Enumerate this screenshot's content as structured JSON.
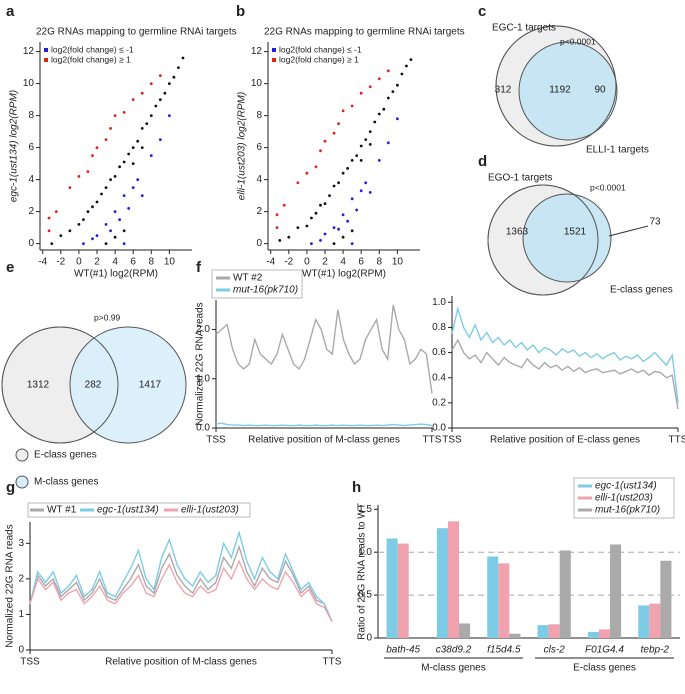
{
  "chart_data": [
    {
      "type": "scatter",
      "panel": "a",
      "title": "22G RNAs mapping to germline RNAi targets",
      "xlabel": "WT(#1) log2(RPM)",
      "ylabel": "egc-1(ust134) log2(RPM)",
      "xlim": [
        -4.3,
        12.5
      ],
      "ylim": [
        -0.4,
        12.6
      ],
      "xticks": [
        -4,
        -2,
        0,
        2,
        4,
        6,
        8,
        10
      ],
      "yticks": [
        0,
        2,
        4,
        6,
        8,
        10,
        12
      ],
      "series": [
        {
          "color": "#111111",
          "x": [
            -3,
            -2,
            -1,
            0,
            0.5,
            1,
            1.5,
            2,
            2.5,
            3,
            3.5,
            4,
            4.5,
            5,
            5.5,
            6,
            6.5,
            7,
            7.5,
            8,
            8.5,
            9,
            9.5,
            10,
            10.5,
            11,
            11.5,
            3,
            4,
            5,
            6,
            7
          ],
          "values": [
            0,
            0.5,
            0.8,
            1.2,
            1.5,
            2,
            2.3,
            2.6,
            3.1,
            3.5,
            4,
            4.2,
            4.8,
            5.1,
            5.6,
            6,
            6.4,
            7.2,
            7.5,
            8,
            8.6,
            9,
            9.4,
            10,
            10.4,
            11,
            11.6,
            0,
            0.4,
            0.8,
            5,
            6
          ]
        },
        {
          "name": "log2(fold change) ≥ 1",
          "color": "#e0201b",
          "x": [
            -3.3,
            -3.3,
            -2.5,
            -1,
            0,
            1,
            1.5,
            2,
            3,
            3.5,
            4,
            5,
            6,
            7,
            8,
            9
          ],
          "values": [
            0.8,
            1.6,
            2,
            3.5,
            4.2,
            4.5,
            5.5,
            6,
            6.5,
            7.2,
            8,
            8.2,
            9,
            9.4,
            10,
            10.5
          ]
        },
        {
          "name": "log2(fold change) ≤ -1",
          "color": "#1f1fd6",
          "x": [
            0.5,
            1.5,
            2,
            3,
            3.5,
            4,
            4.5,
            5,
            5.5,
            6,
            6.5,
            7,
            8,
            9,
            10,
            5
          ],
          "values": [
            0,
            0.3,
            0.5,
            1.2,
            0.8,
            2,
            1.5,
            3,
            2.2,
            3.5,
            4,
            3,
            5.5,
            6.5,
            8,
            0
          ]
        }
      ]
    },
    {
      "type": "scatter",
      "panel": "b",
      "title": "22G RNAs mapping to germline RNAi targets",
      "xlabel": "WT(#1) log2(RPM)",
      "ylabel": "elli-1(ust203) log2(RPM)",
      "xlim": [
        -4.3,
        12.5
      ],
      "ylim": [
        -0.4,
        12.6
      ],
      "xticks": [
        -4,
        -2,
        0,
        2,
        4,
        6,
        8,
        10
      ],
      "yticks": [
        0,
        2,
        4,
        6,
        8,
        10,
        12
      ],
      "series": [
        {
          "color": "#111111",
          "x": [
            -3,
            -2,
            -1,
            0,
            0.5,
            1,
            1.5,
            2,
            2.5,
            3,
            3.5,
            4,
            4.5,
            5,
            5.5,
            6,
            6.5,
            7,
            7.5,
            8,
            8.5,
            9,
            9.5,
            10,
            10.5,
            11,
            11.5,
            3,
            4,
            5,
            6,
            7
          ],
          "values": [
            0.2,
            0.4,
            1,
            1.1,
            1.6,
            1.9,
            2.4,
            2.5,
            3,
            3.6,
            3.8,
            4.4,
            4.7,
            5.2,
            5.5,
            6.1,
            6.5,
            7,
            7.6,
            8.1,
            8.4,
            9.1,
            9.5,
            9.9,
            10.6,
            11.1,
            11.5,
            0,
            0.4,
            0.8,
            5.2,
            6.2
          ]
        },
        {
          "name": "log2(fold change) ≥ 1",
          "color": "#e0201b",
          "x": [
            -3.3,
            -3.3,
            -2.5,
            -1,
            0,
            1,
            1.5,
            2,
            3,
            3.5,
            4,
            5,
            6,
            7,
            8,
            9
          ],
          "values": [
            1,
            1.8,
            2.4,
            3.8,
            4.4,
            4.8,
            5.8,
            6.4,
            6.9,
            7.5,
            8.3,
            8.6,
            9.4,
            9.8,
            10.3,
            10.8
          ]
        },
        {
          "name": "log2(fold change) ≤ -1",
          "color": "#1f1fd6",
          "x": [
            0.5,
            1.5,
            2,
            3,
            3.5,
            4,
            4.5,
            5,
            5.5,
            6,
            6.5,
            7,
            8,
            9,
            10,
            5
          ],
          "values": [
            0,
            0.2,
            0.6,
            1,
            0.9,
            1.8,
            1.4,
            2.8,
            2.1,
            3.3,
            3.8,
            3.2,
            5.2,
            6.3,
            7.8,
            0
          ]
        }
      ]
    },
    {
      "type": "venn",
      "panel": "c",
      "p_value": "p<0.0001",
      "sets": [
        {
          "name": "EGC-1 targets",
          "color": "#eeeeee"
        },
        {
          "name": "ELLI-1 targets",
          "color": "#bfe3f2"
        }
      ],
      "values": [
        312,
        1192,
        90
      ]
    },
    {
      "type": "venn",
      "panel": "d",
      "p_value": "p<0.0001",
      "sets": [
        {
          "name": "EGO-1 targets",
          "color": "#eeeeee"
        },
        {
          "name": "E-class genes",
          "color": "#bfe3f2"
        }
      ],
      "values": [
        1363,
        1521,
        73
      ]
    },
    {
      "type": "venn",
      "panel": "e",
      "p_value": "p>0.99",
      "sets": [
        {
          "name": "E-class genes",
          "color": "#eeeeee"
        },
        {
          "name": "M-class genes",
          "color": "#d6eefa"
        }
      ],
      "values": [
        1312,
        282,
        1417
      ]
    },
    {
      "type": "line",
      "panel": "f",
      "ylabel": "Normalized 22G RNA reads",
      "xlabel": "Relative position of M-class genes",
      "xlim": [
        0,
        39
      ],
      "xticks": [
        {
          "value": 0,
          "label": "TSS"
        },
        {
          "value": 39,
          "label": "TTS"
        }
      ],
      "ylim": [
        0,
        2.6
      ],
      "yticks": [
        {
          "value": 0,
          "label": "0.0"
        },
        {
          "value": 1,
          "label": "1.0"
        },
        {
          "value": 2,
          "label": "2.0"
        }
      ],
      "series": [
        {
          "name": "WT #2",
          "color": "#aaaaaa",
          "values": [
            1.9,
            2.0,
            2.1,
            1.6,
            1.3,
            1.2,
            1.3,
            1.8,
            1.5,
            1.4,
            1.3,
            1.5,
            1.9,
            1.6,
            1.3,
            1.2,
            1.4,
            1.8,
            2.2,
            2.0,
            1.6,
            1.5,
            2.4,
            1.8,
            1.5,
            1.3,
            1.4,
            1.8,
            2.0,
            2.2,
            1.6,
            1.4,
            2.5,
            2.0,
            1.8,
            1.3,
            1.4,
            1.6,
            1.5,
            0.7
          ]
        },
        {
          "name": "mut-16(pk710)",
          "color": "#7ecbe6",
          "values": [
            0.08,
            0.1,
            0.07,
            0.06,
            0.06,
            0.05,
            0.06,
            0.05,
            0.05,
            0.06,
            0.05,
            0.05,
            0.06,
            0.05,
            0.05,
            0.06,
            0.05,
            0.05,
            0.06,
            0.05,
            0.05,
            0.06,
            0.05,
            0.06,
            0.05,
            0.05,
            0.06,
            0.05,
            0.05,
            0.06,
            0.05,
            0.06,
            0.07,
            0.06,
            0.05,
            0.06,
            0.07,
            0.08,
            0.07,
            0.05
          ]
        }
      ]
    },
    {
      "type": "line",
      "xlabel": "Relative position of E-class genes",
      "xlim": [
        0,
        39
      ],
      "xticks": [
        {
          "value": 0,
          "label": "TSS"
        },
        {
          "value": 39,
          "label": "TTS"
        }
      ],
      "ylim": [
        0,
        1.05
      ],
      "yticks": [
        {
          "value": 0,
          "label": "0.0"
        },
        0.2,
        0.4,
        0.6,
        0.8,
        {
          "value": 1,
          "label": "1.0"
        }
      ],
      "series": [
        {
          "color": "#aaaaaa",
          "values": [
            0.62,
            0.7,
            0.6,
            0.55,
            0.58,
            0.52,
            0.6,
            0.55,
            0.5,
            0.56,
            0.52,
            0.5,
            0.48,
            0.55,
            0.5,
            0.47,
            0.52,
            0.48,
            0.5,
            0.46,
            0.49,
            0.45,
            0.48,
            0.44,
            0.46,
            0.47,
            0.44,
            0.45,
            0.46,
            0.43,
            0.45,
            0.47,
            0.44,
            0.46,
            0.42,
            0.45,
            0.44,
            0.4,
            0.42,
            0.15
          ]
        },
        {
          "color": "#7ecbe6",
          "values": [
            0.75,
            0.95,
            0.8,
            0.72,
            0.82,
            0.7,
            0.76,
            0.68,
            0.72,
            0.66,
            0.7,
            0.64,
            0.68,
            0.62,
            0.66,
            0.6,
            0.64,
            0.62,
            0.58,
            0.63,
            0.6,
            0.62,
            0.57,
            0.6,
            0.56,
            0.59,
            0.55,
            0.58,
            0.6,
            0.54,
            0.57,
            0.55,
            0.58,
            0.53,
            0.56,
            0.6,
            0.55,
            0.5,
            0.58,
            0.2
          ]
        }
      ]
    },
    {
      "type": "line",
      "panel": "g",
      "ylabel": "Normalized 22G RNA reads",
      "xlabel": "Relative position of M-class genes",
      "xlim": [
        0,
        39
      ],
      "xticks": [
        {
          "value": 0,
          "label": "TSS"
        },
        {
          "value": 39,
          "label": "TTS"
        }
      ],
      "ylim": [
        0,
        3.6
      ],
      "yticks": [
        0,
        1,
        2,
        3
      ],
      "series": [
        {
          "name": "WT #1",
          "color": "#aaaaaa",
          "values": [
            1.3,
            2.1,
            1.8,
            2.0,
            1.5,
            1.7,
            1.9,
            1.4,
            1.6,
            2.0,
            1.5,
            1.4,
            1.7,
            2.0,
            2.4,
            1.8,
            1.6,
            2.3,
            2.7,
            2.1,
            1.8,
            1.6,
            2.0,
            1.7,
            1.9,
            2.6,
            2.3,
            2.9,
            2.2,
            1.8,
            2.3,
            2.0,
            1.9,
            2.5,
            2.1,
            1.6,
            1.8,
            1.4,
            1.3,
            0.8
          ]
        },
        {
          "name": "egc-1(ust134)",
          "color": "#7ecbe6",
          "values": [
            1.3,
            2.2,
            1.9,
            2.2,
            1.6,
            1.8,
            2.1,
            1.5,
            1.7,
            2.2,
            1.6,
            1.5,
            1.9,
            2.3,
            2.8,
            2.0,
            1.7,
            2.6,
            3.1,
            2.4,
            2.0,
            1.8,
            2.2,
            1.9,
            2.1,
            3.0,
            2.6,
            3.3,
            2.5,
            2.0,
            2.6,
            2.2,
            2.0,
            2.7,
            2.2,
            1.7,
            1.9,
            1.5,
            1.3,
            0.8
          ]
        },
        {
          "name": "elli-1(ust203)",
          "color": "#f0a3ae",
          "values": [
            1.3,
            2.0,
            1.7,
            1.9,
            1.4,
            1.6,
            1.7,
            1.3,
            1.5,
            1.8,
            1.4,
            1.3,
            1.6,
            1.8,
            2.1,
            1.6,
            1.5,
            2.0,
            2.4,
            1.9,
            1.6,
            1.5,
            1.8,
            1.6,
            1.7,
            2.3,
            2.0,
            2.5,
            2.0,
            1.7,
            2.0,
            1.8,
            1.7,
            2.2,
            1.9,
            1.5,
            1.7,
            1.3,
            1.2,
            0.8
          ]
        }
      ]
    },
    {
      "type": "bar",
      "panel": "h",
      "ylabel": "Ratio of 22G RNA reads to WT",
      "categories": [
        "bath-45",
        "c38d9.2",
        "f15d4.5",
        "cls-2",
        "F01G4.4",
        "tebp-2"
      ],
      "group_labels": [
        "M-class genes",
        "E-class genes"
      ],
      "ylim": [
        0,
        1.55
      ],
      "yticks": [
        0,
        0.5,
        {
          "value": 1,
          "label": "1.0"
        },
        1.5
      ],
      "reference_lines": [
        0.5,
        1
      ],
      "series": [
        {
          "name": "egc-1(ust134)",
          "color": "#7ecbe6",
          "values": [
            1.16,
            1.28,
            0.95,
            0.15,
            0.07,
            0.38
          ]
        },
        {
          "name": "elli-1(ust203)",
          "color": "#f0a3ae",
          "values": [
            1.1,
            1.36,
            0.87,
            0.16,
            0.1,
            0.4
          ]
        },
        {
          "name": "mut-16(pk710)",
          "color": "#aaaaaa",
          "values": [
            null,
            0.17,
            0.05,
            1.02,
            1.09,
            0.9
          ]
        }
      ]
    }
  ]
}
